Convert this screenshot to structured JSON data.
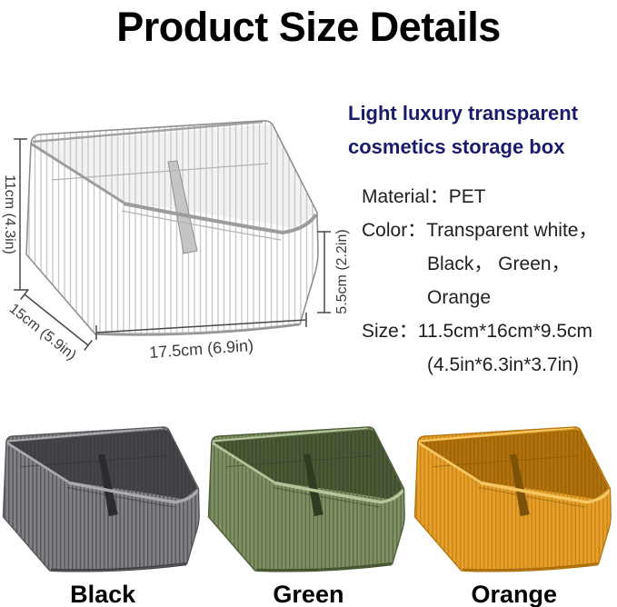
{
  "page": {
    "title": "Product Size Details",
    "background": "#ffffff"
  },
  "diagram": {
    "height_label": "11cm (4.3in)",
    "depth_label": "15cm (5.9in)",
    "width_label": "17.5cm (6.9in)",
    "front_height_label": "5.5cm (2.2in)"
  },
  "info": {
    "heading": "Light luxury transparent cosmetics storage box",
    "heading_color": "#1b1b6b",
    "specs": [
      {
        "label": "Material：",
        "text": "PET",
        "indent": false
      },
      {
        "label": "Color：",
        "text": "Transparent white，",
        "indent": false
      },
      {
        "label": "",
        "text": "Black， Green，",
        "indent": true
      },
      {
        "label": "",
        "text": "Orange",
        "indent": true
      },
      {
        "label": "Size：",
        "text": "11.5cm*16cm*9.5cm",
        "indent": false
      },
      {
        "label": "",
        "text": "(4.5in*6.3in*3.7in)",
        "indent": true
      }
    ]
  },
  "products": [
    {
      "name": "Black",
      "colors": {
        "body": "#818285",
        "interior": "#3a3b3e",
        "rib": "#4a4b4e",
        "rim": "#aaabae",
        "divider": "#2b2c2f",
        "outline": "#56575a",
        "base": "#3e3f42"
      }
    },
    {
      "name": "Green",
      "colors": {
        "body": "#7e9064",
        "interior": "#3b4a2c",
        "rib": "#55673c",
        "rim": "#b5c69c",
        "divider": "#2f3c22",
        "outline": "#4c5c36",
        "base": "#44522f"
      }
    },
    {
      "name": "Orange",
      "colors": {
        "body": "#e8a02c",
        "interior": "#9c6307",
        "rib": "#bf7e10",
        "rim": "#f6c863",
        "divider": "#7c5208",
        "outline": "#b4770e",
        "base": "#a96c0a"
      }
    }
  ]
}
